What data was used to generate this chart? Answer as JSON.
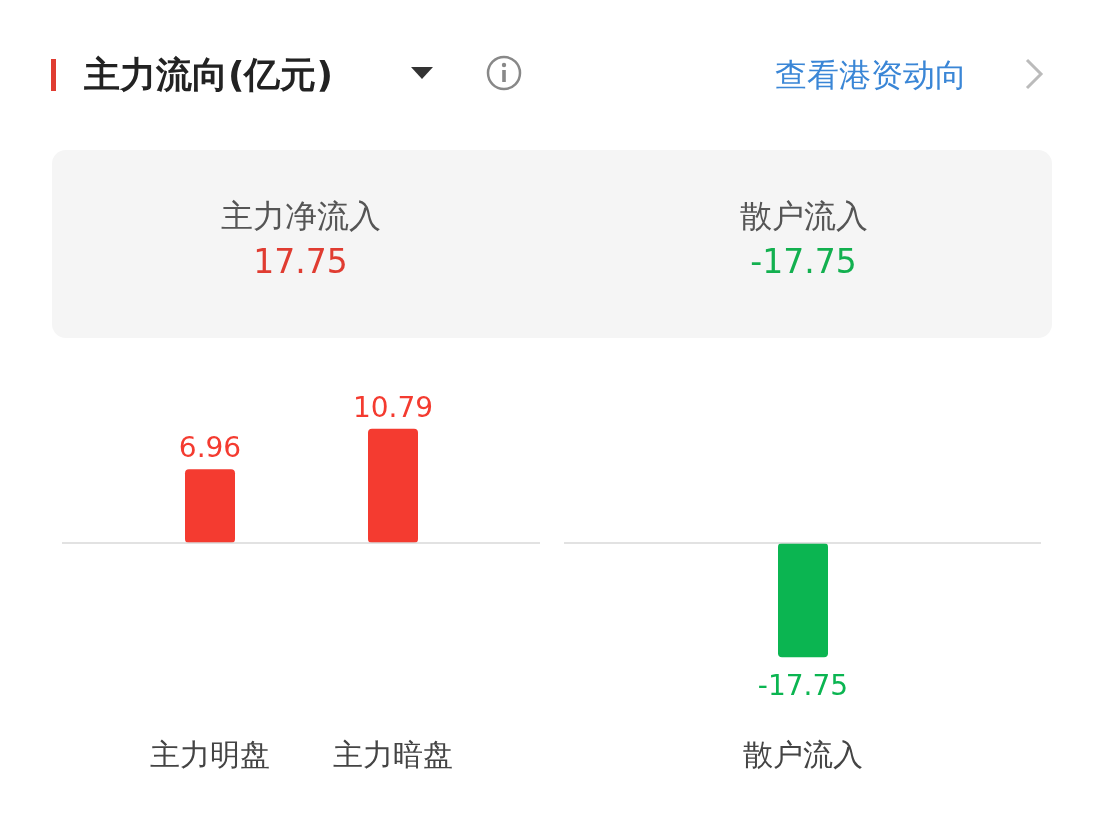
{
  "chart_data": [
    {
      "type": "other",
      "title": "主力流向(亿元)",
      "annotations": [
        "查看港资动向",
        "主力净流入",
        "17.75",
        "散户流入",
        "-17.75"
      ]
    },
    {
      "type": "bar",
      "categories": [
        "主力明盘",
        "主力暗盘"
      ],
      "values": [
        6.96,
        10.79
      ],
      "colors": [
        "#f43b30",
        "#f43b30"
      ],
      "data_labels": true
    },
    {
      "type": "bar",
      "categories": [
        "散户流入"
      ],
      "values": [
        -17.75
      ],
      "colors": [
        "#0bb551"
      ],
      "data_labels": true
    }
  ]
}
